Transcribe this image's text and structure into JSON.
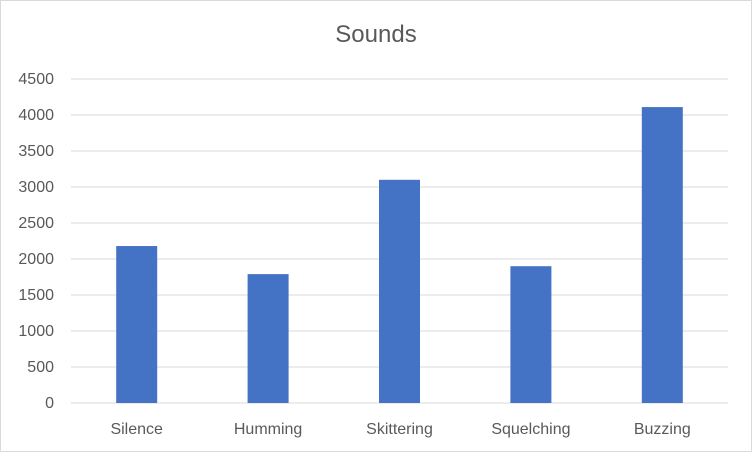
{
  "chart_data": {
    "type": "bar",
    "title": "Sounds",
    "categories": [
      "Silence",
      "Humming",
      "Skittering",
      "Squelching",
      "Buzzing"
    ],
    "values": [
      2180,
      1790,
      3100,
      1900,
      4110
    ],
    "ylim": [
      0,
      4500
    ],
    "yticks": [
      0,
      500,
      1000,
      1500,
      2000,
      2500,
      3000,
      3500,
      4000,
      4500
    ],
    "xlabel": "",
    "ylabel": "",
    "grid": true,
    "legend": "none",
    "bar_color": "#4472C4",
    "grid_color": "#d9d9d9",
    "text_color": "#595959"
  }
}
